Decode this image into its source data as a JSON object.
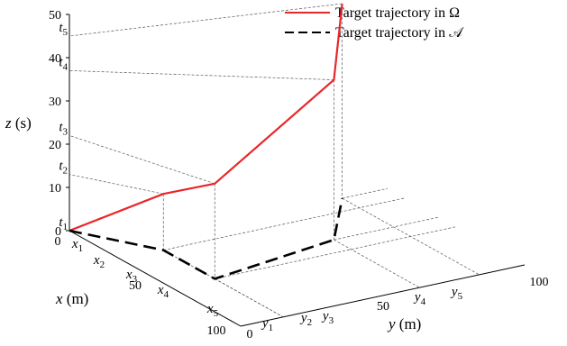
{
  "chart_data": {
    "type": "line",
    "projection": "3d",
    "axes": {
      "x": {
        "label": "x",
        "unit": "(m)",
        "range": [
          0,
          100
        ],
        "ticks": [
          0,
          50,
          100
        ]
      },
      "y": {
        "label": "y",
        "unit": "(m)",
        "range": [
          0,
          100
        ],
        "ticks": [
          0,
          50,
          100
        ]
      },
      "z": {
        "label": "z",
        "unit": "(s)",
        "range": [
          0,
          50
        ],
        "ticks": [
          0,
          10,
          20,
          30,
          40,
          50
        ]
      }
    },
    "waypoint_labels": {
      "t": [
        "t1",
        "t2",
        "t3",
        "t4",
        "t5"
      ],
      "x": [
        "x1",
        "x2",
        "x3",
        "x4",
        "x5"
      ],
      "y": [
        "y1",
        "y2",
        "y3",
        "y4",
        "y5"
      ]
    },
    "series": [
      {
        "name": "Target trajectory in Ω",
        "style": "solid",
        "color": "#e8262a",
        "points": [
          {
            "x": 0,
            "y": 0,
            "z": 0
          },
          {
            "x": 30,
            "y": 15,
            "z": 13
          },
          {
            "x": 60,
            "y": 15,
            "z": 22
          },
          {
            "x": 50,
            "y": 63,
            "z": 37
          },
          {
            "x": 20,
            "y": 84,
            "z": 45
          }
        ]
      },
      {
        "name": "Target trajectory in 𝒜",
        "style": "dashed",
        "color": "#000000",
        "points": [
          {
            "x": 0,
            "y": 0
          },
          {
            "x": 30,
            "y": 15
          },
          {
            "x": 60,
            "y": 15
          },
          {
            "x": 50,
            "y": 63
          },
          {
            "x": 20,
            "y": 84
          }
        ]
      }
    ],
    "grid": false,
    "legend_position": "top-right"
  },
  "z_ticks": [
    "0",
    "10",
    "20",
    "30",
    "40",
    "50"
  ],
  "x_ticks": [
    "0",
    "50",
    "100"
  ],
  "y_ticks": [
    "0",
    "50",
    "100"
  ],
  "z_label": {
    "var": "z",
    "unit": " (s)"
  },
  "x_label": {
    "var": "x",
    "unit": " (m)"
  },
  "y_label": {
    "var": "y",
    "unit": " (m)"
  },
  "legend": {
    "solid_text": "Target trajectory in Ω",
    "dashed_text": "Target trajectory in 𝒜"
  }
}
